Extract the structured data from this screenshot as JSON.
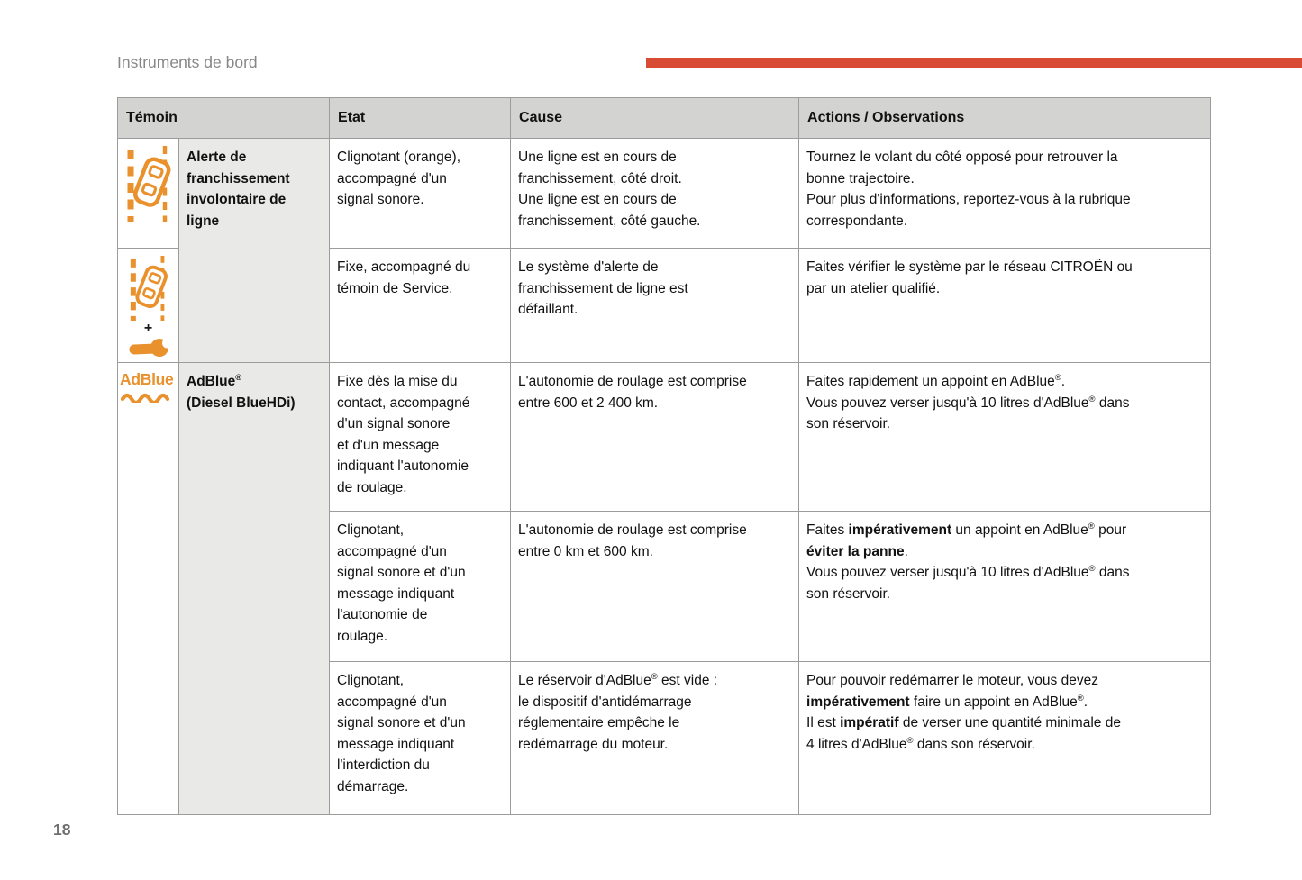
{
  "page": {
    "section_title": "Instruments de bord",
    "page_number": "18"
  },
  "colors": {
    "accent_red": "#d84b35",
    "icon_orange": "#e9912d",
    "header_bg": "#d3d3d1",
    "label_bg": "#e9e9e7",
    "border_gray": "#9c9c9c"
  },
  "icons": {
    "plus_glyph": "+",
    "adblue_text": "AdBlue"
  },
  "table": {
    "headers": [
      "Témoin",
      "Etat",
      "Cause",
      "Actions / Observations"
    ],
    "groups": [
      {
        "icon": "lane-departure-warning-icon",
        "label": [
          [
            {
              "t": "Alerte de",
              "b": 1
            }
          ],
          [
            {
              "t": "franchissement",
              "b": 1
            }
          ],
          [
            {
              "t": "involontaire de",
              "b": 1
            }
          ],
          [
            {
              "t": "ligne",
              "b": 1
            }
          ]
        ],
        "rows": [
          {
            "etat": [
              [
                {
                  "t": "Clignotant (orange),"
                }
              ],
              [
                {
                  "t": "accompagné d'un"
                }
              ],
              [
                {
                  "t": "signal sonore."
                }
              ]
            ],
            "cause": [
              [
                {
                  "t": "Une ligne est en cours de"
                }
              ],
              [
                {
                  "t": "franchissement, côté droit."
                }
              ],
              [
                {
                  "t": "Une ligne est en cours de"
                }
              ],
              [
                {
                  "t": "franchissement, côté gauche."
                }
              ]
            ],
            "actions": [
              [
                {
                  "t": "Tournez le volant du côté opposé pour retrouver la"
                }
              ],
              [
                {
                  "t": "bonne trajectoire."
                }
              ],
              [
                {
                  "t": "Pour plus d'informations, reportez-vous à la rubrique"
                }
              ],
              [
                {
                  "t": "correspondante."
                }
              ]
            ]
          },
          {
            "icon": "lane-departure-warning-plus-service-icon",
            "etat": [
              [
                {
                  "t": "Fixe, accompagné du"
                }
              ],
              [
                {
                  "t": "témoin de Service."
                }
              ]
            ],
            "cause": [
              [
                {
                  "t": "Le système d'alerte de"
                }
              ],
              [
                {
                  "t": "franchissement de ligne est"
                }
              ],
              [
                {
                  "t": "défaillant."
                }
              ]
            ],
            "actions": [
              [
                {
                  "t": "Faites vérifier le système par le réseau CITROËN ou"
                }
              ],
              [
                {
                  "t": "par un atelier qualifié."
                }
              ]
            ]
          }
        ]
      },
      {
        "icon": "adblue-icon",
        "label": [
          [
            {
              "t": "AdBlue",
              "b": 1
            },
            {
              "t": "®",
              "b": 1,
              "s": 1
            }
          ],
          [
            {
              "t": "(Diesel BlueHDi)",
              "b": 1
            }
          ]
        ],
        "rows": [
          {
            "etat": [
              [
                {
                  "t": "Fixe dès la mise du"
                }
              ],
              [
                {
                  "t": "contact, accompagné"
                }
              ],
              [
                {
                  "t": "d'un signal sonore"
                }
              ],
              [
                {
                  "t": "et d'un message"
                }
              ],
              [
                {
                  "t": "indiquant l'autonomie"
                }
              ],
              [
                {
                  "t": "de roulage."
                }
              ]
            ],
            "cause": [
              [
                {
                  "t": "L'autonomie de roulage est comprise"
                }
              ],
              [
                {
                  "t": "entre 600 et 2 400 km."
                }
              ]
            ],
            "actions": [
              [
                {
                  "t": "Faites rapidement un appoint en AdBlue"
                },
                {
                  "t": "®",
                  "s": 1
                },
                {
                  "t": "."
                }
              ],
              [
                {
                  "t": "Vous pouvez verser jusqu'à 10 litres d'AdBlue"
                },
                {
                  "t": "®",
                  "s": 1
                },
                {
                  "t": " dans"
                }
              ],
              [
                {
                  "t": "son réservoir."
                }
              ]
            ]
          },
          {
            "etat": [
              [
                {
                  "t": "Clignotant,"
                }
              ],
              [
                {
                  "t": "accompagné d'un"
                }
              ],
              [
                {
                  "t": "signal sonore et d'un"
                }
              ],
              [
                {
                  "t": "message indiquant"
                }
              ],
              [
                {
                  "t": "l'autonomie de"
                }
              ],
              [
                {
                  "t": "roulage."
                }
              ]
            ],
            "cause": [
              [
                {
                  "t": "L'autonomie de roulage est comprise"
                }
              ],
              [
                {
                  "t": "entre 0 km et 600 km."
                }
              ]
            ],
            "actions": [
              [
                {
                  "t": "Faites "
                },
                {
                  "t": "impérativement",
                  "b": 1
                },
                {
                  "t": " un appoint en AdBlue"
                },
                {
                  "t": "®",
                  "s": 1
                },
                {
                  "t": " pour"
                }
              ],
              [
                {
                  "t": "éviter la panne",
                  "b": 1
                },
                {
                  "t": "."
                }
              ],
              [
                {
                  "t": "Vous pouvez verser jusqu'à 10 litres d'AdBlue"
                },
                {
                  "t": "®",
                  "s": 1
                },
                {
                  "t": " dans"
                }
              ],
              [
                {
                  "t": "son réservoir."
                }
              ]
            ]
          },
          {
            "etat": [
              [
                {
                  "t": "Clignotant,"
                }
              ],
              [
                {
                  "t": "accompagné d'un"
                }
              ],
              [
                {
                  "t": "signal sonore et d'un"
                }
              ],
              [
                {
                  "t": "message indiquant"
                }
              ],
              [
                {
                  "t": "l'interdiction du"
                }
              ],
              [
                {
                  "t": "démarrage."
                }
              ]
            ],
            "cause": [
              [
                {
                  "t": "Le réservoir d'AdBlue"
                },
                {
                  "t": "®",
                  "s": 1
                },
                {
                  "t": " est vide :"
                }
              ],
              [
                {
                  "t": "le dispositif d'antidémarrage"
                }
              ],
              [
                {
                  "t": "réglementaire empêche le"
                }
              ],
              [
                {
                  "t": "redémarrage du moteur."
                }
              ]
            ],
            "actions": [
              [
                {
                  "t": "Pour pouvoir redémarrer le moteur, vous devez"
                }
              ],
              [
                {
                  "t": "impérativement",
                  "b": 1
                },
                {
                  "t": " faire un appoint en AdBlue"
                },
                {
                  "t": "®",
                  "s": 1
                },
                {
                  "t": "."
                }
              ],
              [
                {
                  "t": "Il est "
                },
                {
                  "t": "impératif",
                  "b": 1
                },
                {
                  "t": " de verser une quantité minimale de"
                }
              ],
              [
                {
                  "t": "4 litres d'AdBlue"
                },
                {
                  "t": "®",
                  "s": 1
                },
                {
                  "t": " dans son réservoir."
                }
              ]
            ]
          }
        ]
      }
    ]
  }
}
